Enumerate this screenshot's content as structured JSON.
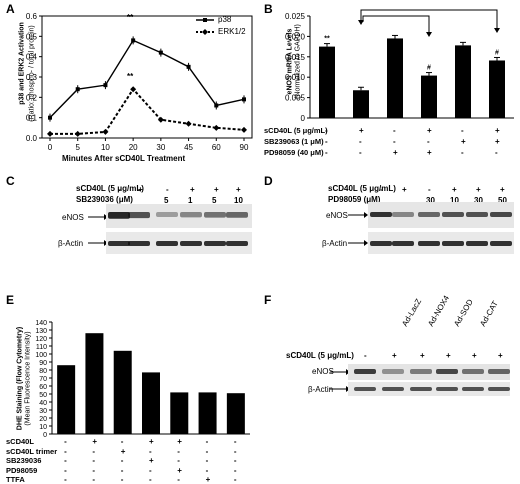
{
  "panels": {
    "A": "A",
    "B": "B",
    "C": "C",
    "D": "D",
    "E": "E",
    "F": "F"
  },
  "A": {
    "xlabel": "Minutes After sCD40L Treatment",
    "ylabel": "p38 and ERK2 Activation",
    "ylabel2": "(Ratio: phospho- / total protein)",
    "legend": [
      "p38",
      "ERK1/2"
    ],
    "star": "**"
  },
  "B": {
    "ylabel": "eNOS mRNA Levels",
    "ylabel2": "(Normalized to GAPDH)",
    "rows": [
      {
        "label": "sCD40L (5 μg/mL)",
        "signs": [
          "-",
          "+",
          "-",
          "+",
          "-",
          "+"
        ]
      },
      {
        "label": "SB239063 (1 μM)",
        "signs": [
          "-",
          "-",
          "-",
          "-",
          "+",
          "+"
        ]
      },
      {
        "label": "PD98059 (40 μM)",
        "signs": [
          "-",
          "-",
          "+",
          "+",
          "-",
          "-"
        ]
      }
    ],
    "annotations": [
      "**",
      "",
      "",
      "#",
      "",
      "#"
    ]
  },
  "C": {
    "row1_label": "sCD40L (5 μg/mL)",
    "row2_label": "SB239036 (μM)",
    "row1_signs": [
      "-",
      "+",
      "-",
      "+",
      "+",
      "+"
    ],
    "row2_vals": [
      "",
      "",
      "5",
      "1",
      "5",
      "10"
    ],
    "bands": [
      "eNOS",
      "β-Actin"
    ]
  },
  "D": {
    "row1_label": "sCD40L (5 μg/mL)",
    "row2_label": "PD98059 (μM)",
    "row1_signs": [
      "-",
      "+",
      "-",
      "+",
      "+",
      "+"
    ],
    "row2_vals": [
      "",
      "",
      "30",
      "10",
      "30",
      "50"
    ],
    "bands": [
      "eNOS",
      "β-Actin"
    ]
  },
  "E": {
    "ylabel": "DHE Staining (Flow Cytometry)",
    "ylabel2": "(Mean Fluorescence Intensity)",
    "rows": [
      {
        "label": "sCD40L",
        "signs": [
          "-",
          "+",
          "-",
          "+",
          "+",
          "-",
          "-"
        ]
      },
      {
        "label": "sCD40L trimer",
        "signs": [
          "-",
          "-",
          "+",
          "-",
          "-",
          "-",
          "-"
        ]
      },
      {
        "label": "SB239036",
        "signs": [
          "-",
          "-",
          "-",
          "+",
          "-",
          "-",
          "-"
        ]
      },
      {
        "label": "PD98059",
        "signs": [
          "-",
          "-",
          "-",
          "-",
          "+",
          "-",
          "-"
        ]
      },
      {
        "label": "TTFA",
        "signs": [
          "-",
          "-",
          "-",
          "-",
          "-",
          "+",
          "-"
        ]
      }
    ]
  },
  "F": {
    "row_label": "sCD40L (5 μg/mL)",
    "signs": [
      "-",
      "+",
      "+",
      "+",
      "+",
      "+"
    ],
    "col_labels": [
      "Ad-LacZ",
      "Ad-NOX4",
      "Ad-SOD",
      "Ad-CAT"
    ],
    "dashes": [
      "-",
      "-"
    ],
    "bands": [
      "eNOS",
      "β-Actin"
    ]
  },
  "chart_data": [
    {
      "type": "line",
      "x": [
        0,
        5,
        10,
        20,
        30,
        45,
        60,
        90
      ],
      "series": [
        {
          "name": "p38",
          "values": [
            0.1,
            0.24,
            0.26,
            0.48,
            0.42,
            0.35,
            0.16,
            0.19
          ]
        },
        {
          "name": "ERK1/2",
          "values": [
            0.02,
            0.02,
            0.03,
            0.24,
            0.09,
            0.07,
            0.05,
            0.04
          ]
        }
      ],
      "xlabel": "Minutes After sCD40L Treatment",
      "ylabel": "p38 and ERK2 Activation (Ratio: phospho- / total protein)",
      "ylim": [
        0,
        0.6
      ],
      "yticks": [
        0,
        0.1,
        0.2,
        0.3,
        0.4,
        0.5,
        0.6
      ],
      "legend_position": "top-right"
    },
    {
      "type": "bar",
      "categories": [
        "1",
        "2",
        "3",
        "4",
        "5",
        "6"
      ],
      "values": [
        0.0175,
        0.0068,
        0.0195,
        0.0104,
        0.0178,
        0.0141
      ],
      "ylabel": "eNOS mRNA Levels (Normalized to GAPDH)",
      "ylim": [
        0,
        0.025
      ],
      "yticks": [
        0,
        0.005,
        0.01,
        0.015,
        0.02,
        0.025
      ]
    },
    {
      "type": "bar",
      "categories": [
        "1",
        "2",
        "3",
        "4",
        "5",
        "6",
        "7"
      ],
      "values": [
        86,
        126,
        104,
        77,
        52,
        52,
        51
      ],
      "ylabel": "DHE Staining (Flow Cytometry) (Mean Fluorescence Intensity)",
      "ylim": [
        0,
        140
      ],
      "yticks": [
        0,
        10,
        20,
        30,
        40,
        50,
        60,
        70,
        80,
        90,
        100,
        110,
        120,
        130,
        140
      ]
    }
  ]
}
